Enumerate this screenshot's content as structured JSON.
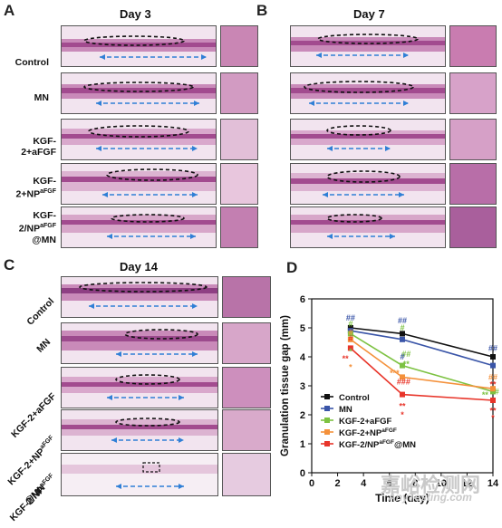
{
  "panels": {
    "A": {
      "letter": "A",
      "day": "Day 3"
    },
    "B": {
      "letter": "B",
      "day": "Day 7"
    },
    "C": {
      "letter": "C",
      "day": "Day 14"
    },
    "D": {
      "letter": "D"
    }
  },
  "groups": [
    {
      "id": "control",
      "label": "Control"
    },
    {
      "id": "mn",
      "label": "MN"
    },
    {
      "id": "kgf2-afgf",
      "label": "KGF-2+aFGF"
    },
    {
      "id": "kgf2-np",
      "label_main": "KGF-2+NP",
      "label_sup": "aFGF"
    },
    {
      "id": "kgf2-np-mn",
      "label_main": "KGF-2/NP",
      "label_sup": "aFGF",
      "label_line2": "@MN"
    }
  ],
  "watermark": {
    "main": "嘉峪检测网",
    "sub": "AnyTesting.com"
  },
  "chart_data": {
    "type": "line",
    "xlabel": "Time (day)",
    "ylabel": "Granulation tissue gap (mm)",
    "xlim": [
      0,
      14
    ],
    "ylim": [
      0,
      6
    ],
    "xticks": [
      0,
      2,
      4,
      6,
      8,
      10,
      12,
      14
    ],
    "yticks": [
      0,
      1,
      2,
      3,
      4,
      5,
      6
    ],
    "x": [
      3,
      7,
      14
    ],
    "legend_position": "lower-left",
    "series": [
      {
        "name": "Control",
        "color": "#111111",
        "values": [
          5.0,
          4.8,
          4.0
        ]
      },
      {
        "name": "MN",
        "color": "#3a55a8",
        "values": [
          4.9,
          4.6,
          3.7
        ]
      },
      {
        "name": "KGF-2+aFGF",
        "color": "#7dc242",
        "values": [
          4.8,
          3.7,
          2.8
        ]
      },
      {
        "name": "KGF-2+NP",
        "name_sup": "aFGF",
        "color": "#f4913b",
        "values": [
          4.6,
          3.3,
          2.9
        ]
      },
      {
        "name": "KGF-2/NP",
        "name_sup": "aFGF",
        "name_suffix": "@MN",
        "color": "#e8352a",
        "values": [
          4.3,
          2.7,
          2.5
        ]
      }
    ],
    "annotations": [
      {
        "text": "##",
        "x": 3,
        "y": 5.25,
        "color": "#3a55a8"
      },
      {
        "text": "#",
        "x": 3,
        "y": 5.05,
        "color": "#7dc242"
      },
      {
        "text": "##",
        "x": 7,
        "y": 5.15,
        "color": "#3a55a8"
      },
      {
        "text": "#",
        "x": 7,
        "y": 4.9,
        "color": "#7dc242"
      },
      {
        "text": "##",
        "x": 14,
        "y": 4.2,
        "color": "#3a55a8"
      },
      {
        "text": "#",
        "x": 3,
        "y": 4.75,
        "color": "#f4913b"
      },
      {
        "text": "#",
        "x": 3,
        "y": 4.55,
        "color": "#e8352a"
      },
      {
        "text": "*",
        "x": 3,
        "y": 4.1,
        "color": "#7dc242"
      },
      {
        "text": "**",
        "x": 2.6,
        "y": 3.85,
        "color": "#e8352a"
      },
      {
        "text": "*",
        "x": 3,
        "y": 3.55,
        "color": "#f4913b"
      },
      {
        "text": "##",
        "x": 7.3,
        "y": 4.0,
        "color": "#7dc242"
      },
      {
        "text": "#",
        "x": 7,
        "y": 3.9,
        "color": "#3a55a8"
      },
      {
        "text": "***",
        "x": 6.4,
        "y": 3.35,
        "color": "#f4913b"
      },
      {
        "text": "**",
        "x": 7.3,
        "y": 3.65,
        "color": "#7dc242"
      },
      {
        "text": "###",
        "x": 7.1,
        "y": 3.05,
        "color": "#e8352a"
      },
      {
        "text": "**",
        "x": 7,
        "y": 2.2,
        "color": "#e8352a"
      },
      {
        "text": "*",
        "x": 7,
        "y": 1.9,
        "color": "#e8352a"
      },
      {
        "text": "##",
        "x": 14,
        "y": 3.2,
        "color": "#f4913b"
      },
      {
        "text": "**",
        "x": 14,
        "y": 2.95,
        "color": "#e8352a"
      },
      {
        "text": "**",
        "x": 13.4,
        "y": 2.6,
        "color": "#7dc242"
      },
      {
        "text": "#",
        "x": 14.3,
        "y": 2.7,
        "color": "#7dc242"
      },
      {
        "text": "**",
        "x": 14,
        "y": 2.05,
        "color": "#e8352a"
      },
      {
        "text": "*",
        "x": 14,
        "y": 1.8,
        "color": "#e8352a"
      }
    ]
  }
}
